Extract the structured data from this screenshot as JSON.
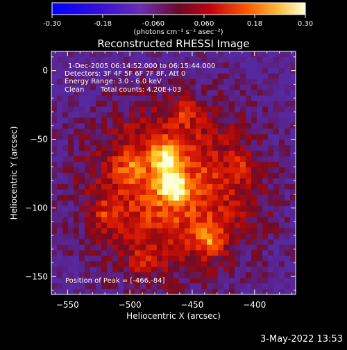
{
  "colorbar": {
    "tick_labels": [
      "-0.30",
      "-0.18",
      "-0.060",
      "0.060",
      "0.18",
      "0.30"
    ],
    "tick_values": [
      -0.3,
      -0.18,
      -0.06,
      0.06,
      0.18,
      0.3
    ],
    "range": [
      -0.3,
      0.3
    ],
    "units_label": "(photons cm⁻² s⁻¹ asec⁻²)"
  },
  "annotations": {
    "time_range": "1-Dec-2005 06:14:52.000 to 06:15:44.000",
    "detectors": "Detectors: 3F 4F 5F 6F 7F 8F, Att 0",
    "energy_range": "Energy Range: 3.0 - 6.0 keV",
    "method": "Clean",
    "total_counts": "Total counts: 4.20E+03",
    "peak_position": "Position of Peak = [-466,-84]"
  },
  "timestamp": "3-May-2022 13:53",
  "colors": {
    "background": "#000000",
    "low_color": "#5a2fa8",
    "mid_color": "#d81818",
    "high_color": "#ffffc8"
  },
  "chart_data": {
    "type": "heatmap",
    "title": "Reconstructed RHESSI Image",
    "xlabel": "Heliocentric X (arcsec)",
    "ylabel": "Heliocentric Y (arcsec)",
    "xlim": [
      -563,
      -367
    ],
    "ylim": [
      -163,
      14
    ],
    "x_ticks": [
      -550,
      -500,
      -450,
      -400
    ],
    "y_ticks": [
      0,
      -50,
      -100,
      -150
    ],
    "x_tick_labels": [
      "−550",
      "−500",
      "−450",
      "−400"
    ],
    "y_tick_labels": [
      "0",
      "−50",
      "−100",
      "−150"
    ],
    "grid": false,
    "peak": [
      -466,
      -84
    ],
    "sources": [
      {
        "x": -466,
        "y": -84,
        "value": 0.3
      },
      {
        "x": -472,
        "y": -62,
        "value": 0.26
      },
      {
        "x": -437,
        "y": -123,
        "value": 0.22
      },
      {
        "x": -500,
        "y": -70,
        "value": 0.14
      },
      {
        "x": -455,
        "y": -30,
        "value": 0.13
      },
      {
        "x": -520,
        "y": -105,
        "value": 0.12
      },
      {
        "x": -410,
        "y": -70,
        "value": 0.1
      },
      {
        "x": -490,
        "y": -140,
        "value": 0.1
      }
    ]
  }
}
